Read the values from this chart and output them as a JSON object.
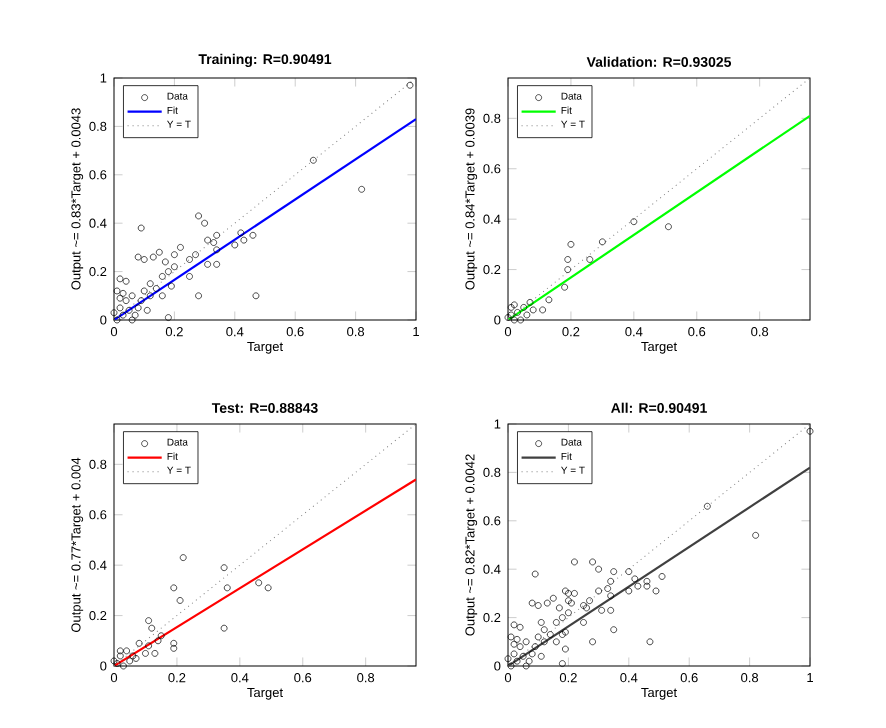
{
  "chart_data": [
    {
      "type": "scatter",
      "title": "Training: R=0.90491",
      "xlabel": "Target",
      "ylabel": "Output ~= 0.83*Target + 0.0043",
      "xlim": [
        0,
        1
      ],
      "ylim": [
        0,
        1
      ],
      "xticks": [
        0,
        0.2,
        0.4,
        0.6,
        0.8,
        1
      ],
      "yticks": [
        0,
        0.2,
        0.4,
        0.6,
        0.8,
        1
      ],
      "legend": "top left",
      "series": [
        {
          "name": "Data",
          "marker": "circle",
          "color": "#000000",
          "x": [
            0.98,
            0.66,
            0.82,
            0.47,
            0.09,
            0.28,
            0.3,
            0.42,
            0.46,
            0.43,
            0.4,
            0.34,
            0.33,
            0.31,
            0.34,
            0.34,
            0.31,
            0.28,
            0.27,
            0.25,
            0.22,
            0.2,
            0.2,
            0.18,
            0.17,
            0.15,
            0.13,
            0.1,
            0.08,
            0.16,
            0.25,
            0.12,
            0.1,
            0.09,
            0.06,
            0.04,
            0.02,
            0.01,
            0.02,
            0.03,
            0.05,
            0.07,
            0.0,
            0.01,
            0.04,
            0.08,
            0.11,
            0.14,
            0.18,
            0.06,
            0.12,
            0.16,
            0.19,
            0.02,
            0.03
          ],
          "values": [
            0.97,
            0.66,
            0.54,
            0.1,
            0.38,
            0.43,
            0.4,
            0.36,
            0.35,
            0.33,
            0.31,
            0.35,
            0.32,
            0.33,
            0.29,
            0.23,
            0.23,
            0.1,
            0.27,
            0.25,
            0.3,
            0.27,
            0.22,
            0.2,
            0.24,
            0.28,
            0.26,
            0.25,
            0.26,
            0.18,
            0.18,
            0.1,
            0.12,
            0.08,
            0.1,
            0.16,
            0.17,
            0.12,
            0.05,
            0.02,
            0.04,
            0.02,
            0.03,
            0.0,
            0.08,
            0.05,
            0.04,
            0.13,
            0.01,
            0.0,
            0.15,
            0.1,
            0.14,
            0.09,
            0.11
          ]
        },
        {
          "name": "Fit",
          "type": "line",
          "color": "#0000ff",
          "x": [
            0,
            1
          ],
          "values": [
            0,
            0.83
          ]
        },
        {
          "name": "Y = T",
          "type": "line",
          "line_style": "dotted",
          "color": "#808080",
          "x": [
            0,
            1
          ],
          "values": [
            0,
            1
          ]
        }
      ]
    },
    {
      "type": "scatter",
      "title": "Validation: R=0.93025",
      "xlabel": "Target",
      "ylabel": "Output ~= 0.84*Target + 0.0039",
      "xlim": [
        0,
        0.96
      ],
      "ylim": [
        0,
        0.96
      ],
      "xticks": [
        0,
        0.2,
        0.4,
        0.6,
        0.8
      ],
      "yticks": [
        0,
        0.2,
        0.4,
        0.6,
        0.8
      ],
      "legend": "top left",
      "series": [
        {
          "name": "Data",
          "marker": "circle",
          "color": "#000000",
          "x": [
            0.51,
            0.4,
            0.3,
            0.26,
            0.2,
            0.19,
            0.19,
            0.18,
            0.13,
            0.11,
            0.07,
            0.05,
            0.03,
            0.02,
            0.01,
            0.0,
            0.04,
            0.06,
            0.08,
            0.02,
            0.01
          ],
          "values": [
            0.37,
            0.39,
            0.31,
            0.24,
            0.3,
            0.24,
            0.2,
            0.13,
            0.08,
            0.04,
            0.07,
            0.05,
            0.03,
            0.06,
            0.02,
            0.01,
            0.0,
            0.02,
            0.04,
            0.0,
            0.05
          ]
        },
        {
          "name": "Fit",
          "type": "line",
          "color": "#00ff00",
          "x": [
            0,
            0.96
          ],
          "values": [
            0,
            0.81
          ]
        },
        {
          "name": "Y = T",
          "type": "line",
          "line_style": "dotted",
          "color": "#808080",
          "x": [
            0,
            0.96
          ],
          "values": [
            0,
            0.96
          ]
        }
      ]
    },
    {
      "type": "scatter",
      "title": "Test: R=0.88843",
      "xlabel": "Target",
      "ylabel": "Output ~= 0.77*Target + 0.004",
      "xlim": [
        0,
        0.96
      ],
      "ylim": [
        0,
        0.96
      ],
      "xticks": [
        0,
        0.2,
        0.4,
        0.6,
        0.8
      ],
      "yticks": [
        0,
        0.2,
        0.4,
        0.6,
        0.8
      ],
      "legend": "top left",
      "series": [
        {
          "name": "Data",
          "marker": "circle",
          "color": "#000000",
          "x": [
            0.22,
            0.35,
            0.36,
            0.35,
            0.46,
            0.49,
            0.19,
            0.21,
            0.11,
            0.12,
            0.14,
            0.15,
            0.19,
            0.19,
            0.11,
            0.08,
            0.1,
            0.06,
            0.04,
            0.02,
            0.01,
            0.0,
            0.03,
            0.05,
            0.02,
            0.13,
            0.07
          ],
          "values": [
            0.43,
            0.39,
            0.31,
            0.15,
            0.33,
            0.31,
            0.31,
            0.26,
            0.18,
            0.15,
            0.1,
            0.12,
            0.09,
            0.07,
            0.08,
            0.09,
            0.05,
            0.04,
            0.06,
            0.04,
            0.01,
            0.02,
            0.0,
            0.02,
            0.06,
            0.05,
            0.03
          ]
        },
        {
          "name": "Fit",
          "type": "line",
          "color": "#ff0000",
          "x": [
            0,
            0.96
          ],
          "values": [
            0,
            0.74
          ]
        },
        {
          "name": "Y = T",
          "type": "line",
          "line_style": "dotted",
          "color": "#808080",
          "x": [
            0,
            0.96
          ],
          "values": [
            0,
            0.96
          ]
        }
      ]
    },
    {
      "type": "scatter",
      "title": "All: R=0.90491",
      "xlabel": "Target",
      "ylabel": "Output ~= 0.82*Target + 0.0042",
      "xlim": [
        0,
        1
      ],
      "ylim": [
        0,
        1
      ],
      "xticks": [
        0,
        0.2,
        0.4,
        0.6,
        0.8,
        1
      ],
      "yticks": [
        0,
        0.2,
        0.4,
        0.6,
        0.8,
        1
      ],
      "legend": "top left",
      "series": [
        {
          "name": "Data",
          "marker": "circle",
          "color": "#000000",
          "x": [
            1.0,
            0.66,
            0.82,
            0.47,
            0.09,
            0.22,
            0.28,
            0.3,
            0.35,
            0.4,
            0.42,
            0.46,
            0.51,
            0.49,
            0.46,
            0.43,
            0.4,
            0.35,
            0.34,
            0.34,
            0.33,
            0.3,
            0.34,
            0.31,
            0.28,
            0.27,
            0.26,
            0.25,
            0.22,
            0.2,
            0.2,
            0.19,
            0.21,
            0.2,
            0.18,
            0.17,
            0.15,
            0.13,
            0.1,
            0.08,
            0.16,
            0.25,
            0.11,
            0.18,
            0.12,
            0.1,
            0.09,
            0.06,
            0.04,
            0.02,
            0.01,
            0.02,
            0.03,
            0.05,
            0.07,
            0.0,
            0.01,
            0.04,
            0.08,
            0.11,
            0.14,
            0.18,
            0.06,
            0.12,
            0.16,
            0.19,
            0.02,
            0.03,
            0.19
          ],
          "values": [
            0.97,
            0.66,
            0.54,
            0.1,
            0.38,
            0.43,
            0.43,
            0.4,
            0.39,
            0.39,
            0.36,
            0.35,
            0.37,
            0.31,
            0.33,
            0.33,
            0.31,
            0.15,
            0.35,
            0.29,
            0.32,
            0.31,
            0.23,
            0.23,
            0.1,
            0.27,
            0.24,
            0.25,
            0.3,
            0.3,
            0.27,
            0.31,
            0.26,
            0.22,
            0.2,
            0.24,
            0.28,
            0.26,
            0.25,
            0.26,
            0.18,
            0.18,
            0.18,
            0.13,
            0.1,
            0.12,
            0.08,
            0.1,
            0.16,
            0.17,
            0.12,
            0.05,
            0.02,
            0.04,
            0.02,
            0.03,
            0.0,
            0.08,
            0.05,
            0.04,
            0.13,
            0.01,
            0.0,
            0.15,
            0.1,
            0.14,
            0.09,
            0.11,
            0.07
          ]
        },
        {
          "name": "Fit",
          "type": "line",
          "color": "#404040",
          "x": [
            0,
            1
          ],
          "values": [
            0,
            0.82
          ]
        },
        {
          "name": "Y = T",
          "type": "line",
          "line_style": "dotted",
          "color": "#808080",
          "x": [
            0,
            1
          ],
          "values": [
            0,
            1
          ]
        }
      ]
    }
  ]
}
